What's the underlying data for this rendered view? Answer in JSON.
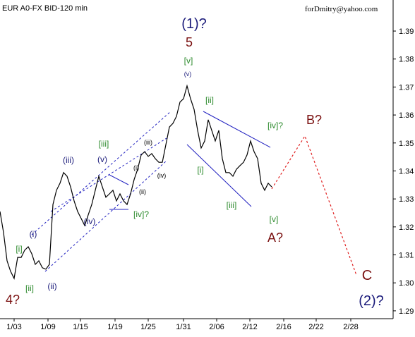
{
  "chart_data": {
    "type": "line",
    "title": "EUR A0-FX BID-120 min",
    "subtitle": "forDmitry@yahoo.com",
    "xlim": [
      0,
      111.4
    ],
    "xticks": [
      {
        "value": 4,
        "label": "1/03"
      },
      {
        "value": 13.6,
        "label": "1/09"
      },
      {
        "value": 22.8,
        "label": "1/15"
      },
      {
        "value": 32.6,
        "label": "1/19"
      },
      {
        "value": 42,
        "label": "1/25"
      },
      {
        "value": 52,
        "label": "1/31"
      },
      {
        "value": 61.4,
        "label": "2/06"
      },
      {
        "value": 70.8,
        "label": "2/12"
      },
      {
        "value": 80.4,
        "label": "2/16"
      },
      {
        "value": 89.6,
        "label": "2/22"
      },
      {
        "value": 99.4,
        "label": "2/28"
      }
    ],
    "ylim": [
      1.2872,
      1.4011
    ],
    "yticks": [
      1.29,
      {
        "value": 1.3,
        "label": "1.30"
      },
      1.31,
      1.32,
      1.33,
      1.34,
      1.35,
      1.36,
      1.37,
      1.38,
      1.39
    ],
    "series": [
      {
        "color": "#000000",
        "style": "solid",
        "x": [
          0,
          1,
          2,
          3,
          4,
          5,
          6,
          7,
          8,
          9,
          10,
          11,
          12,
          13,
          14,
          15,
          16,
          17,
          18,
          19,
          20,
          21,
          22,
          23,
          24,
          25,
          26,
          27,
          28,
          29,
          30,
          31,
          32,
          33,
          34,
          35,
          36,
          37,
          38,
          39,
          40,
          41,
          42,
          43,
          44,
          45,
          46,
          47,
          48,
          49,
          50,
          51,
          52,
          53,
          54,
          55,
          56,
          57,
          58,
          59,
          60,
          61,
          62,
          63,
          64,
          65,
          66,
          67,
          68,
          69,
          70,
          71,
          72,
          73,
          74,
          75,
          76,
          77
        ],
        "values": [
          1.3255,
          1.318,
          1.3079,
          1.3041,
          1.3016,
          1.3091,
          1.3091,
          1.3117,
          1.3129,
          1.3104,
          1.3066,
          1.3079,
          1.3054,
          1.3049,
          1.3066,
          1.328,
          1.3331,
          1.3356,
          1.3394,
          1.3381,
          1.3343,
          1.3293,
          1.3255,
          1.323,
          1.3205,
          1.3243,
          1.328,
          1.3331,
          1.3381,
          1.3343,
          1.3306,
          1.3318,
          1.3331,
          1.3293,
          1.3318,
          1.3293,
          1.328,
          1.3318,
          1.3369,
          1.3406,
          1.3457,
          1.3469,
          1.3452,
          1.3462,
          1.3444,
          1.3431,
          1.3431,
          1.3494,
          1.3557,
          1.357,
          1.3595,
          1.3646,
          1.3658,
          1.3704,
          1.3658,
          1.362,
          1.3545,
          1.3482,
          1.3507,
          1.3583,
          1.3545,
          1.3507,
          1.3545,
          1.3444,
          1.3394,
          1.3394,
          1.3381,
          1.3406,
          1.3419,
          1.3431,
          1.3457,
          1.3507,
          1.3469,
          1.3444,
          1.3356,
          1.3331,
          1.3356,
          1.3343
        ]
      },
      {
        "color": "#e02020",
        "style": "dashed",
        "x": [
          77,
          86.4,
          101
        ],
        "values": [
          1.3336,
          1.3525,
          1.3028
        ]
      }
    ],
    "annotations": [
      {
        "text": "(1)?",
        "color": "#1a1a7a"
      },
      {
        "text": "5",
        "color": "#7a1010"
      },
      {
        "text": "[v]",
        "color": "#2e8b2e"
      },
      {
        "text": "(v)",
        "color": "#1a1a7a"
      },
      {
        "text": "[ii]",
        "color": "#2e8b2e"
      },
      {
        "text": "[iv]?",
        "color": "#2e8b2e"
      },
      {
        "text": "B?",
        "color": "#7a1010"
      },
      {
        "text": "[iii]",
        "color": "#2e8b2e"
      },
      {
        "text": "(iii)",
        "color": "#1a1a7a"
      },
      {
        "text": "(v)",
        "color": "#1a1a7a"
      },
      {
        "text": "(iii)",
        "color": "#000000"
      },
      {
        "text": "(i)",
        "color": "#000000"
      },
      {
        "text": "(ii)",
        "color": "#000000"
      },
      {
        "text": "(iv)",
        "color": "#000000"
      },
      {
        "text": "(iv)",
        "color": "#1a1a7a"
      },
      {
        "text": "[iv]?",
        "color": "#2e8b2e"
      },
      {
        "text": "[i]",
        "color": "#2e8b2e"
      },
      {
        "text": "[iii]",
        "color": "#2e8b2e"
      },
      {
        "text": "[v]",
        "color": "#2e8b2e"
      },
      {
        "text": "A?",
        "color": "#7a1010"
      },
      {
        "text": "(i)",
        "color": "#1a1a7a"
      },
      {
        "text": "[i]",
        "color": "#2e8b2e"
      },
      {
        "text": "[ii]",
        "color": "#2e8b2e"
      },
      {
        "text": "(ii)",
        "color": "#1a1a7a"
      },
      {
        "text": "4?",
        "color": "#7a1010"
      },
      {
        "text": "C",
        "color": "#7a1010"
      },
      {
        "text": "(2)?",
        "color": "#1a1a7a"
      }
    ]
  }
}
